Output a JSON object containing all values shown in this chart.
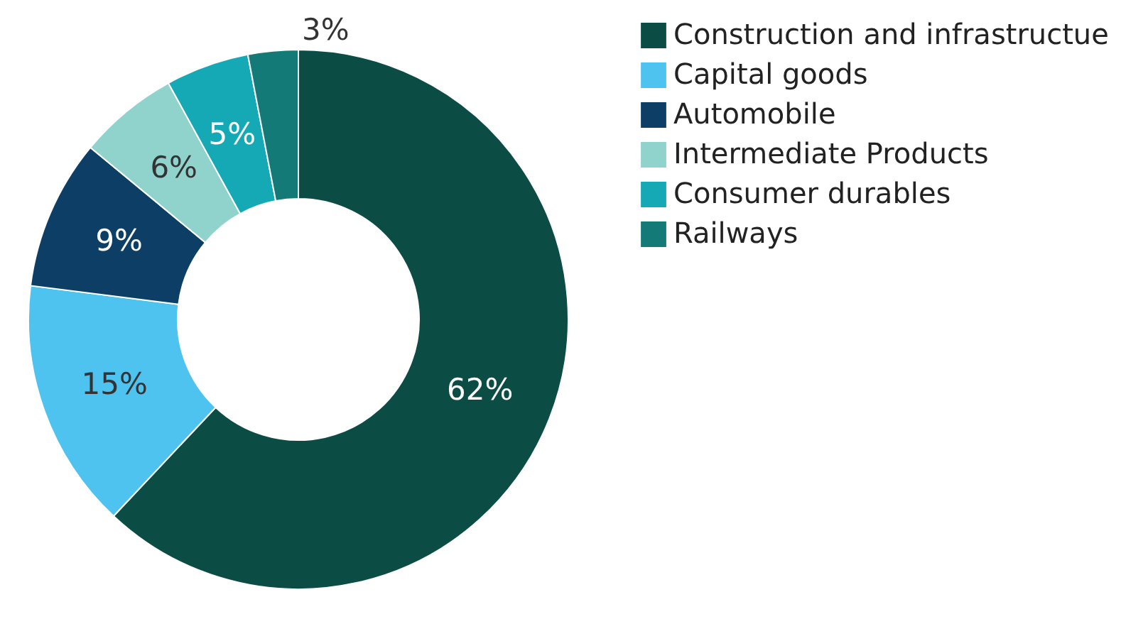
{
  "chart_data": {
    "type": "donut",
    "categories": [
      "Construction and infrastructue",
      "Capital goods",
      "Automobile",
      "Intermediate Products",
      "Consumer durables",
      "Railways"
    ],
    "values": [
      62,
      15,
      9,
      6,
      5,
      3
    ],
    "colors": [
      "#0b4d45",
      "#4fc3ef",
      "#0d3f66",
      "#8fd3cc",
      "#14a9b5",
      "#137a78"
    ],
    "value_labels": [
      "62%",
      "15%",
      "9%",
      "6%",
      "5%",
      "3%"
    ],
    "legend": "right"
  }
}
